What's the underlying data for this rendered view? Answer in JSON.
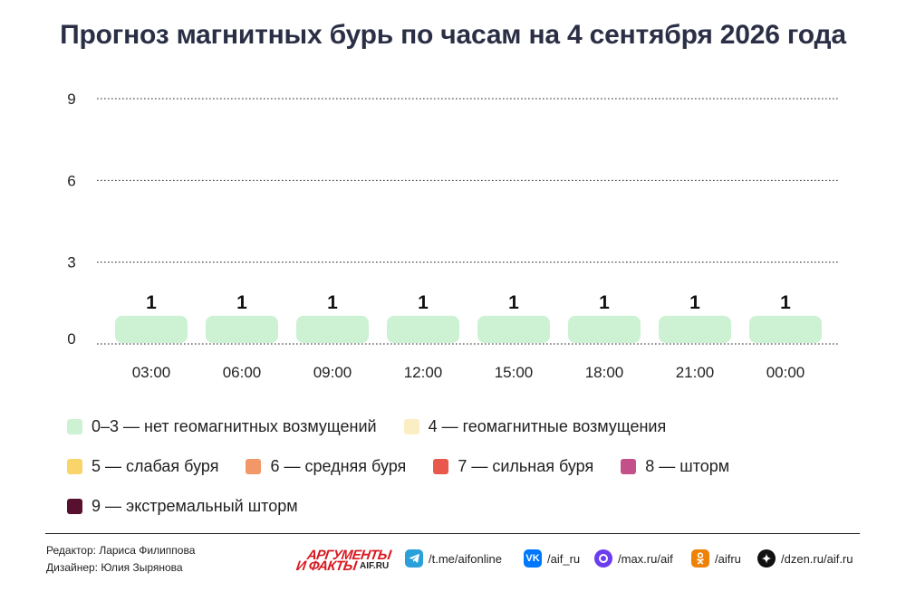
{
  "title": "Прогноз магнитных бурь по часам на 4 сентября 2026 года",
  "chart_data": {
    "type": "bar",
    "categories": [
      "03:00",
      "06:00",
      "09:00",
      "12:00",
      "15:00",
      "18:00",
      "21:00",
      "00:00"
    ],
    "values": [
      1,
      1,
      1,
      1,
      1,
      1,
      1,
      1
    ],
    "ylim": [
      0,
      9
    ],
    "yticks": [
      0,
      3,
      6,
      9
    ],
    "grid": true,
    "bar_color": "#cdf2d3",
    "legend_placement": "bottom"
  },
  "legend": [
    {
      "label": "0–3 — нет геомагнитных возмущений",
      "color": "#cdf2d3"
    },
    {
      "label": "4 — геомагнитные возмущения",
      "color": "#fbeec4"
    },
    {
      "label": "5 — слабая буря",
      "color": "#f8d469"
    },
    {
      "label": "6 — средняя буря",
      "color": "#f29868"
    },
    {
      "label": "7 — сильная буря",
      "color": "#e8584c"
    },
    {
      "label": "8 — шторм",
      "color": "#c4508a"
    },
    {
      "label": "9 — экстремальный шторм",
      "color": "#57102d"
    }
  ],
  "credits": {
    "editor": "Редактор: Лариса Филиппова",
    "designer": "Дизайнер: Юлия Зырянова"
  },
  "logo": {
    "line1": "АРГУМЕНТЫ",
    "line2": "И ФАКТЫ",
    "line3": "AIF.RU"
  },
  "social": {
    "telegram": {
      "label": "/t.me/aifonline",
      "icon": "telegram-icon",
      "color": "#2aa0da"
    },
    "vk": {
      "label": "/aif_ru",
      "icon": "vk-icon",
      "color": "#0077ff"
    },
    "max": {
      "label": "/max.ru/aif",
      "icon": "max-icon",
      "color": "#6b3cf0"
    },
    "ok": {
      "label": "/aifru",
      "icon": "ok-icon",
      "color": "#ee8208"
    },
    "dzen": {
      "label": "/dzen.ru/aif.ru",
      "icon": "dzen-icon",
      "color": "#111111"
    }
  }
}
